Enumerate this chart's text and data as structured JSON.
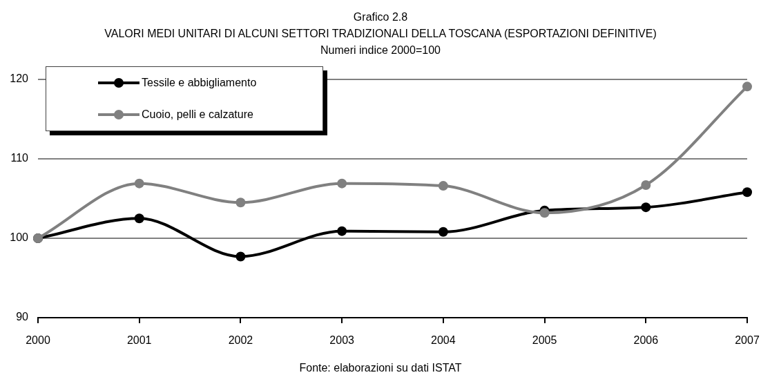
{
  "chart_data": {
    "type": "line",
    "title": "Grafico 2.8",
    "subtitle": "VALORI MEDI UNITARI DI ALCUNI SETTORI TRADIZIONALI DELLA TOSCANA (ESPORTAZIONI DEFINITIVE)",
    "annotations": [
      "Numeri indice 2000=100",
      "Fonte: elaborazioni su dati ISTAT"
    ],
    "categories": [
      "2000",
      "2001",
      "2002",
      "2003",
      "2004",
      "2005",
      "2006",
      "2007"
    ],
    "series": [
      {
        "name": "Tessile e abbigliamento",
        "color": "#000000",
        "values": [
          100,
          102.5,
          97.7,
          100.9,
          100.8,
          103.5,
          103.9,
          105.8
        ]
      },
      {
        "name": "Cuoio, pelli e calzature",
        "color": "#808080",
        "values": [
          100,
          106.9,
          104.5,
          106.9,
          106.6,
          103.2,
          106.7,
          119.1
        ]
      }
    ],
    "ylim": [
      90,
      120
    ],
    "yticks": [
      90,
      100,
      110,
      120
    ],
    "grid": "y",
    "legend": "top left",
    "marker": "circle",
    "line_style": "solid"
  }
}
